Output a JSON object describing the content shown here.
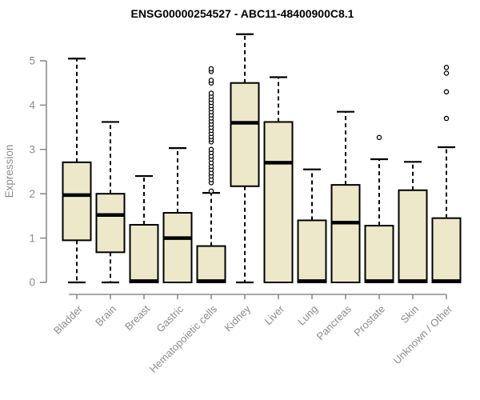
{
  "chart_data": {
    "type": "boxplot",
    "title": "ENSG00000254527 - ABC11-48400900C8.1",
    "ylabel": "Expression",
    "xlabel": "",
    "ylim": [
      0,
      5
    ],
    "yticks": [
      0,
      1,
      2,
      3,
      4,
      5
    ],
    "grid": false,
    "legend": "none",
    "categories": [
      "Bladder",
      "Brain",
      "Breast",
      "Gastric",
      "Hematopoietic cells",
      "Kidney",
      "Liver",
      "Lung",
      "Pancreas",
      "Prostate",
      "Skin",
      "Unknown / Other"
    ],
    "series": [
      {
        "category": "Bladder",
        "whisker_low": 0,
        "q1": 0.95,
        "median": 1.97,
        "q3": 2.71,
        "whisker_high": 5.05,
        "outliers": []
      },
      {
        "category": "Brain",
        "whisker_low": 0,
        "q1": 0.68,
        "median": 1.52,
        "q3": 2.0,
        "whisker_high": 3.62,
        "outliers": []
      },
      {
        "category": "Breast",
        "whisker_low": 0,
        "q1": 0,
        "median": 0.03,
        "q3": 1.3,
        "whisker_high": 2.4,
        "outliers": []
      },
      {
        "category": "Gastric",
        "whisker_low": 0,
        "q1": 0,
        "median": 1.0,
        "q3": 1.57,
        "whisker_high": 3.03,
        "outliers": []
      },
      {
        "category": "Hematopoietic cells",
        "whisker_low": 0,
        "q1": 0,
        "median": 0.03,
        "q3": 0.82,
        "whisker_high": 2.02,
        "outliers": [
          2.06,
          2.25,
          2.32,
          2.4,
          2.47,
          2.55,
          2.62,
          2.7,
          2.78,
          2.85,
          2.93,
          3.0,
          3.17,
          3.23,
          3.29,
          3.36,
          3.43,
          3.5,
          3.57,
          3.64,
          3.71,
          3.78,
          3.85,
          3.92,
          3.99,
          4.06,
          4.13,
          4.2,
          4.27,
          4.5,
          4.56,
          4.76,
          4.82
        ]
      },
      {
        "category": "Kidney",
        "whisker_low": 0,
        "q1": 2.17,
        "median": 3.6,
        "q3": 4.5,
        "whisker_high": 5.6,
        "outliers": []
      },
      {
        "category": "Liver",
        "whisker_low": 0,
        "q1": 0,
        "median": 2.7,
        "q3": 3.62,
        "whisker_high": 4.63,
        "outliers": []
      },
      {
        "category": "Lung",
        "whisker_low": 0,
        "q1": 0,
        "median": 0.03,
        "q3": 1.4,
        "whisker_high": 2.55,
        "outliers": []
      },
      {
        "category": "Pancreas",
        "whisker_low": 0,
        "q1": 0,
        "median": 1.35,
        "q3": 2.2,
        "whisker_high": 3.85,
        "outliers": []
      },
      {
        "category": "Prostate",
        "whisker_low": 0,
        "q1": 0,
        "median": 0.03,
        "q3": 1.28,
        "whisker_high": 2.78,
        "outliers": [
          3.27
        ]
      },
      {
        "category": "Skin",
        "whisker_low": 0,
        "q1": 0,
        "median": 0.03,
        "q3": 2.08,
        "whisker_high": 2.72,
        "outliers": []
      },
      {
        "category": "Unknown / Other",
        "whisker_low": 0,
        "q1": 0,
        "median": 0.03,
        "q3": 1.45,
        "whisker_high": 3.05,
        "outliers": [
          3.7,
          4.3,
          4.72,
          4.85
        ]
      }
    ],
    "colors": {
      "box_fill": "#EDE8C9",
      "box_stroke": "#000000",
      "median": "#000000",
      "whisker": "#000000",
      "axis": "#8C8C8C",
      "tick_label": "#8C8C8C",
      "title": "#000000",
      "background": "#FFFFFF"
    }
  }
}
